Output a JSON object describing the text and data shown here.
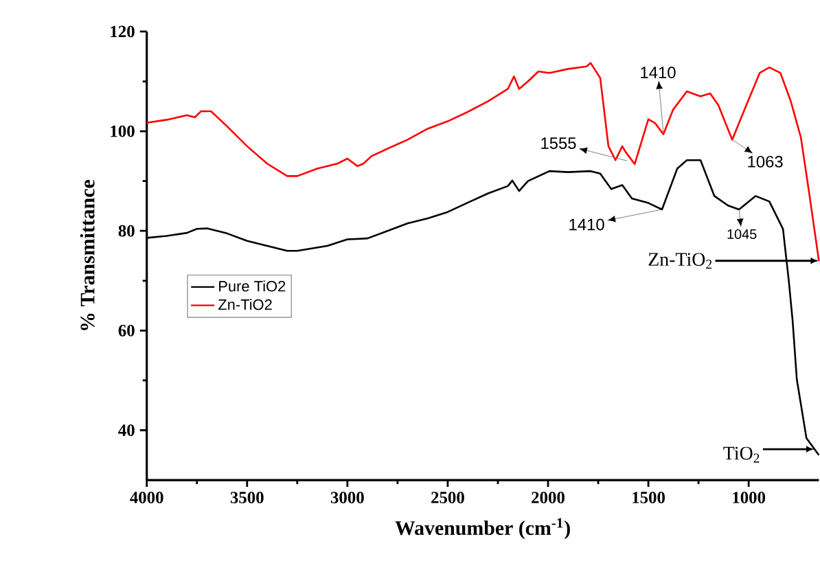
{
  "chart_data": {
    "type": "line",
    "xlabel": "Wavenumber (cm$^{-1}$)",
    "ylabel": "% Transmittance",
    "xlim": [
      4000,
      650
    ],
    "ylim": [
      30,
      120
    ],
    "xticks": [
      4000,
      3500,
      3000,
      2500,
      2000,
      1500,
      1000
    ],
    "yticks": [
      40,
      60,
      80,
      100,
      120
    ],
    "legend": "left",
    "series": [
      {
        "name": "Pure TiO2",
        "color": "#000000",
        "x": [
          4000,
          3900,
          3800,
          3750,
          3700,
          3600,
          3500,
          3400,
          3300,
          3250,
          3100,
          3000,
          2900,
          2800,
          2700,
          2600,
          2500,
          2404,
          2300,
          2200,
          2178,
          2144,
          2100,
          1993,
          1900,
          1788,
          1740,
          1685,
          1630,
          1582,
          1500,
          1432,
          1356,
          1308,
          1240,
          1171,
          1103,
          1048,
          966,
          897,
          829,
          800,
          781,
          760,
          712,
          650
        ],
        "values": [
          78.6,
          79,
          79.6,
          80.4,
          80.5,
          79.5,
          78,
          77,
          76,
          76,
          77,
          78.3,
          78.5,
          80,
          81.5,
          82.5,
          83.8,
          85.6,
          87.5,
          89,
          90.1,
          88,
          90,
          92,
          91.8,
          92,
          91.5,
          88.4,
          89.2,
          86.5,
          85.6,
          84.3,
          92.5,
          94.2,
          94.2,
          87,
          85.1,
          84.3,
          87,
          85.9,
          80.4,
          70,
          62,
          50.2,
          38.4,
          35
        ]
      },
      {
        "name": "Zn-TiO2",
        "color": "#ff0000",
        "x": [
          4000,
          3900,
          3800,
          3760,
          3730,
          3680,
          3600,
          3500,
          3400,
          3300,
          3250,
          3150,
          3050,
          3000,
          2950,
          2920,
          2880,
          2800,
          2700,
          2600,
          2500,
          2404,
          2300,
          2200,
          2170,
          2144,
          2100,
          2048,
          1993,
          1900,
          1808,
          1788,
          1740,
          1699,
          1664,
          1630,
          1616,
          1568,
          1500,
          1466,
          1425,
          1377,
          1308,
          1240,
          1192,
          1151,
          1082,
          1014,
          945,
          897,
          842,
          790,
          740,
          700,
          650
        ],
        "values": [
          101.7,
          102.3,
          103.2,
          102.8,
          104,
          104,
          101,
          97,
          93.5,
          91,
          91,
          92.5,
          93.5,
          94.5,
          93,
          93.5,
          95,
          96.5,
          98.3,
          100.5,
          102,
          103.8,
          106,
          108.5,
          111,
          108.5,
          110,
          112,
          111.7,
          112.5,
          113,
          113.7,
          110.7,
          97,
          94.2,
          97,
          96,
          93.4,
          102.4,
          101.6,
          99.4,
          104.3,
          108,
          107,
          107.6,
          105.2,
          98.3,
          105,
          111.7,
          112.8,
          111.7,
          106,
          98.8,
          88,
          74
        ]
      }
    ],
    "annotations": [
      {
        "text": "1555",
        "x": 1600,
        "y": 94
      },
      {
        "text": "1410",
        "x": 1425,
        "y": 99.4
      },
      {
        "text": "1063",
        "x": 1082,
        "y": 98.3
      },
      {
        "text": "1410",
        "x": 1432,
        "y": 84.3
      },
      {
        "text": "1045",
        "x": 1048,
        "y": 84.3
      },
      {
        "text": "Zn-TiO$_{2}$",
        "x": 650,
        "y": 74
      },
      {
        "text": "TiO$_{2}$",
        "x": 672,
        "y": 36.2
      }
    ]
  }
}
